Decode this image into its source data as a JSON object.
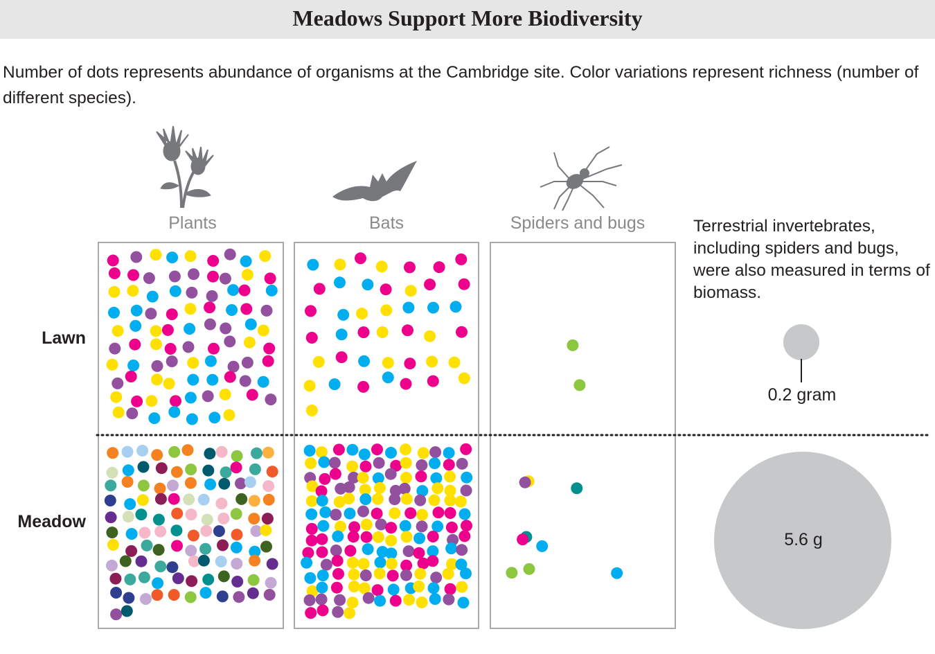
{
  "title": "Meadows Support More Biodiversity",
  "subtitle": "Number of dots represents abundance of organisms at the Cambridge site. Color variations represent richness (number of different species).",
  "columns": {
    "plants": "Plants",
    "bats": "Bats",
    "spiders": "Spiders and bugs"
  },
  "icons": [
    "thistle-icon",
    "bat-icon",
    "spider-icon"
  ],
  "rows": {
    "lawn": "Lawn",
    "meadow": "Meadow"
  },
  "biomass_note": "Terrestrial invertebrates, including spiders and bugs, were also measured in terms of biomass.",
  "biomass": {
    "lawn_label": "0.2 gram",
    "meadow_label": "5.6 g",
    "lawn_grams": 0.2,
    "meadow_grams": 5.6,
    "circle_color": "#c7c8ca"
  },
  "palette": {
    "cyan": "#00aeef",
    "magenta": "#ec008c",
    "yellow": "#ffe000",
    "purple": "#92509f",
    "lime": "#8dc63f",
    "teal": "#00918f",
    "pink": "#f5b8c8",
    "orange": "#f58220",
    "navy": "#2e3f8f",
    "dark_teal": "#005a6e",
    "lavender": "#c5a9d5",
    "sage": "#d4e0b8",
    "light_blue": "#a6cff0",
    "dark_green": "#3e6320",
    "maroon": "#8c1d56",
    "red_orange": "#f15a29",
    "gold": "#fbb040",
    "sea": "#3ba99c",
    "plum": "#662d91"
  },
  "panels": {
    "plants_lawn": {
      "count": 88,
      "colors": [
        "cyan",
        "magenta",
        "yellow",
        "purple"
      ]
    },
    "bats_lawn": {
      "count": 43,
      "colors": [
        "cyan",
        "magenta",
        "yellow"
      ]
    },
    "spiders_lawn": {
      "count": 2,
      "colors": [
        "cyan",
        "lime"
      ]
    },
    "plants_meadow": {
      "count": 112,
      "colors": [
        "cyan",
        "magenta",
        "yellow",
        "purple",
        "lime",
        "teal",
        "pink",
        "orange",
        "navy",
        "dark_teal",
        "lavender",
        "sage",
        "light_blue",
        "dark_green",
        "maroon",
        "red_orange",
        "gold",
        "sea",
        "plum"
      ]
    },
    "bats_meadow": {
      "count": 160,
      "colors": [
        "cyan",
        "magenta",
        "yellow",
        "purple"
      ]
    },
    "spiders_meadow": {
      "count": 9,
      "colors": [
        "cyan",
        "magenta",
        "purple",
        "lime",
        "pink",
        "teal",
        "yellow"
      ]
    }
  }
}
